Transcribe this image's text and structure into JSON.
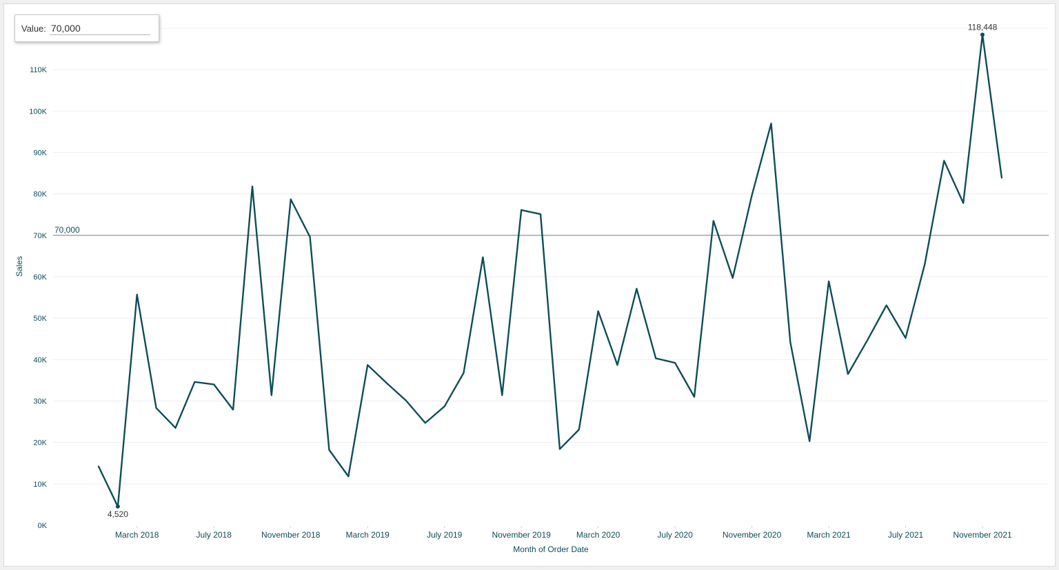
{
  "parameter": {
    "label": "Value:",
    "value": "70,000"
  },
  "colors": {
    "line": "#0e4d5a",
    "refline": "#7a7a7a",
    "grid": "#eeeeee",
    "axis_text": "#0e4d5a"
  },
  "chart_data": {
    "type": "line",
    "title": "",
    "xlabel": "Month of Order Date",
    "ylabel": "Sales",
    "ylim": [
      0,
      120000
    ],
    "x_range": [
      "2018-01",
      "2021-12"
    ],
    "grid": true,
    "y_ticks": [
      {
        "value": 0,
        "label": "0K"
      },
      {
        "value": 10000,
        "label": "10K"
      },
      {
        "value": 20000,
        "label": "20K"
      },
      {
        "value": 30000,
        "label": "30K"
      },
      {
        "value": 40000,
        "label": "40K"
      },
      {
        "value": 50000,
        "label": "50K"
      },
      {
        "value": 60000,
        "label": "60K"
      },
      {
        "value": 70000,
        "label": "70K"
      },
      {
        "value": 80000,
        "label": "80K"
      },
      {
        "value": 90000,
        "label": "90K"
      },
      {
        "value": 100000,
        "label": "100K"
      },
      {
        "value": 110000,
        "label": "110K"
      }
    ],
    "x_ticks": [
      {
        "value": "2018-03",
        "label": "March 2018"
      },
      {
        "value": "2018-07",
        "label": "July 2018"
      },
      {
        "value": "2018-11",
        "label": "November 2018"
      },
      {
        "value": "2019-03",
        "label": "March 2019"
      },
      {
        "value": "2019-07",
        "label": "July 2019"
      },
      {
        "value": "2019-11",
        "label": "November 2019"
      },
      {
        "value": "2020-03",
        "label": "March 2020"
      },
      {
        "value": "2020-07",
        "label": "July 2020"
      },
      {
        "value": "2020-11",
        "label": "November 2020"
      },
      {
        "value": "2021-03",
        "label": "March 2021"
      },
      {
        "value": "2021-07",
        "label": "July 2021"
      },
      {
        "value": "2021-11",
        "label": "November 2021"
      }
    ],
    "reference_line": {
      "value": 70000,
      "label": "70,000"
    },
    "series": [
      {
        "x": [
          "2018-01",
          "2018-02",
          "2018-03",
          "2018-04",
          "2018-05",
          "2018-06",
          "2018-07",
          "2018-08",
          "2018-09",
          "2018-10",
          "2018-11",
          "2018-12",
          "2019-01",
          "2019-02",
          "2019-03",
          "2019-04",
          "2019-05",
          "2019-06",
          "2019-07",
          "2019-08",
          "2019-09",
          "2019-10",
          "2019-11",
          "2019-12",
          "2020-01",
          "2020-02",
          "2020-03",
          "2020-04",
          "2020-05",
          "2020-06",
          "2020-07",
          "2020-08",
          "2020-09",
          "2020-10",
          "2020-11",
          "2020-12",
          "2021-01",
          "2021-02",
          "2021-03",
          "2021-04",
          "2021-05",
          "2021-06",
          "2021-07",
          "2021-08",
          "2021-09",
          "2021-10",
          "2021-11",
          "2021-12"
        ],
        "values": [
          14200,
          4520,
          55700,
          28300,
          23500,
          34600,
          34000,
          27900,
          81800,
          31400,
          78700,
          69600,
          18200,
          11800,
          38700,
          34300,
          30100,
          24700,
          28700,
          36800,
          64700,
          31400,
          76100,
          75100,
          18400,
          23100,
          51700,
          38700,
          57100,
          40300,
          39200,
          31000,
          73500,
          59700,
          79700,
          97000,
          44200,
          20300,
          58900,
          36500,
          44600,
          53100,
          45200,
          63100,
          88000,
          77800,
          118448,
          83900
        ]
      }
    ],
    "annotations": [
      {
        "x": "2018-02",
        "value": 4520,
        "label": "4,520"
      },
      {
        "x": "2021-11",
        "value": 118448,
        "label": "118,448"
      }
    ]
  }
}
